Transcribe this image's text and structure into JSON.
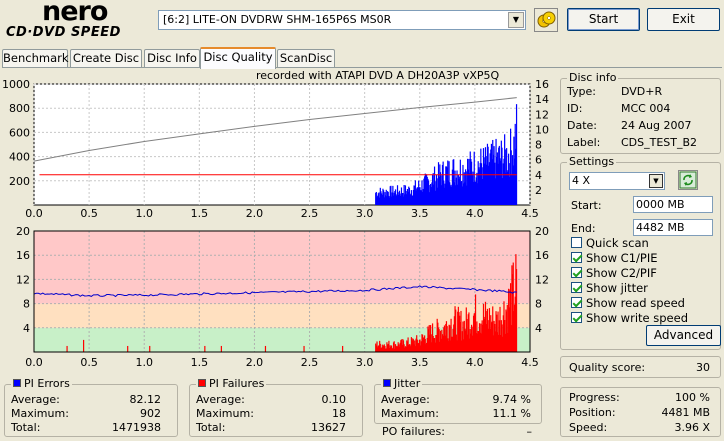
{
  "app": {
    "logo_text": "nero",
    "logo_sub": "CD·DVD SPEED"
  },
  "toolbar": {
    "drive": "[6:2]  LITE-ON DVDRW SHM-165P6S MS0R",
    "start_label": "Start",
    "exit_label": "Exit"
  },
  "tabs": [
    {
      "label": "Benchmark",
      "active": false
    },
    {
      "label": "Create Disc",
      "active": false
    },
    {
      "label": "Disc Info",
      "active": false
    },
    {
      "label": "Disc Quality",
      "active": true
    },
    {
      "label": "ScanDisc",
      "active": false
    }
  ],
  "chart_data": [
    {
      "type": "bar",
      "title": "recorded with ATAPI   DVD A   DH20A3P   vXP5Q",
      "x_ticks": [
        "0.0",
        "0.5",
        "1.0",
        "1.5",
        "2.0",
        "2.5",
        "3.0",
        "3.5",
        "4.0",
        "4.5"
      ],
      "xlim": [
        0,
        4.5
      ],
      "ylim_left": [
        0,
        1000
      ],
      "y_ticks_left": [
        "1000",
        "800",
        "600",
        "400",
        "200"
      ],
      "ylim_right": [
        0,
        16
      ],
      "y_ticks_right": [
        "16",
        "14",
        "12",
        "10",
        "8",
        "6",
        "4",
        "2"
      ],
      "series": [
        {
          "kind": "pi-errors",
          "color": "#0000ff",
          "start_x": 3.1,
          "end_x": 4.38,
          "envelope": [
            [
              3.1,
              150
            ],
            [
              3.2,
              160
            ],
            [
              3.3,
              165
            ],
            [
              3.4,
              180
            ],
            [
              3.5,
              230
            ],
            [
              3.6,
              300
            ],
            [
              3.7,
              380
            ],
            [
              3.8,
              420
            ],
            [
              3.9,
              440
            ],
            [
              4.0,
              480
            ],
            [
              4.1,
              510
            ],
            [
              4.2,
              560
            ],
            [
              4.3,
              600
            ],
            [
              4.35,
              700
            ],
            [
              4.38,
              900
            ]
          ]
        },
        {
          "kind": "read-speed",
          "color": "#808080",
          "points": [
            [
              0.0,
              5.8
            ],
            [
              0.5,
              7.2
            ],
            [
              1.0,
              8.4
            ],
            [
              1.5,
              9.4
            ],
            [
              2.0,
              10.4
            ],
            [
              2.5,
              11.3
            ],
            [
              3.0,
              12.1
            ],
            [
              3.5,
              12.9
            ],
            [
              4.0,
              13.6
            ],
            [
              4.38,
              14.2
            ]
          ]
        },
        {
          "kind": "write-speed",
          "color": "#ff0000",
          "value": 4,
          "start_x": 0.05,
          "end_x": 4.38
        }
      ]
    },
    {
      "type": "bar",
      "x_ticks": [
        "0.0",
        "0.5",
        "1.0",
        "1.5",
        "2.0",
        "2.5",
        "3.0",
        "3.5",
        "4.0",
        "4.5"
      ],
      "xlim": [
        0,
        4.5
      ],
      "ylim_left": [
        0,
        20
      ],
      "y_ticks_left": [
        "20",
        "16",
        "12",
        "8",
        "4"
      ],
      "ylim_right": [
        0,
        20
      ],
      "y_ticks_right": [
        "20",
        "16",
        "12",
        "8",
        "4"
      ],
      "bands": [
        {
          "from": 0,
          "to": 4,
          "color": "#c8f0c8"
        },
        {
          "from": 4,
          "to": 8,
          "color": "#ffe0c0"
        },
        {
          "from": 8,
          "to": 20,
          "color": "#ffc8c8"
        }
      ],
      "series": [
        {
          "kind": "pi-failures",
          "color": "#ff0000",
          "sparse": [
            [
              0.3,
              1
            ],
            [
              0.45,
              2
            ],
            [
              0.85,
              1
            ],
            [
              1.05,
              1
            ],
            [
              1.55,
              1
            ],
            [
              1.7,
              1
            ],
            [
              2.1,
              1
            ],
            [
              2.45,
              1
            ],
            [
              2.8,
              1
            ]
          ],
          "start_x": 3.1,
          "end_x": 4.38,
          "envelope": [
            [
              3.1,
              2
            ],
            [
              3.3,
              2
            ],
            [
              3.5,
              3
            ],
            [
              3.6,
              5
            ],
            [
              3.7,
              6
            ],
            [
              3.8,
              8
            ],
            [
              3.9,
              7
            ],
            [
              4.0,
              10
            ],
            [
              4.1,
              9
            ],
            [
              4.2,
              8
            ],
            [
              4.3,
              12
            ],
            [
              4.38,
              18
            ]
          ]
        },
        {
          "kind": "jitter",
          "color": "#0000cc",
          "points": [
            [
              0.0,
              9.7
            ],
            [
              0.5,
              9.3
            ],
            [
              1.0,
              9.4
            ],
            [
              1.5,
              9.6
            ],
            [
              2.0,
              9.8
            ],
            [
              2.5,
              10.0
            ],
            [
              3.0,
              10.2
            ],
            [
              3.5,
              10.8
            ],
            [
              3.8,
              10.5
            ],
            [
              4.0,
              10.3
            ],
            [
              4.2,
              10.1
            ],
            [
              4.38,
              9.8
            ]
          ]
        }
      ]
    }
  ],
  "disc_info": {
    "title": "Disc info",
    "rows": [
      {
        "label": "Type:",
        "value": "DVD+R"
      },
      {
        "label": "ID:",
        "value": "MCC 004"
      },
      {
        "label": "Date:",
        "value": "24 Aug 2007"
      },
      {
        "label": "Label:",
        "value": "CDS_TEST_B2"
      }
    ]
  },
  "settings": {
    "title": "Settings",
    "speed": "4 X",
    "start_label": "Start:",
    "start_value": "0000 MB",
    "end_label": "End:",
    "end_value": "4482 MB",
    "checks": [
      {
        "label": "Quick scan",
        "checked": false
      },
      {
        "label": "Show C1/PIE",
        "checked": true
      },
      {
        "label": "Show C2/PIF",
        "checked": true
      },
      {
        "label": "Show jitter",
        "checked": true
      },
      {
        "label": "Show read speed",
        "checked": true
      },
      {
        "label": "Show write speed",
        "checked": true
      }
    ],
    "advanced_label": "Advanced"
  },
  "quality": {
    "label": "Quality score:",
    "value": "30"
  },
  "progress": {
    "rows": [
      {
        "label": "Progress:",
        "value": "100 %"
      },
      {
        "label": "Position:",
        "value": "4481 MB"
      },
      {
        "label": "Speed:",
        "value": "3.96 X"
      }
    ]
  },
  "pi_errors": {
    "title": "PI Errors",
    "color": "#0000ff",
    "rows": [
      {
        "label": "Average:",
        "value": "82.12"
      },
      {
        "label": "Maximum:",
        "value": "902"
      },
      {
        "label": "Total:",
        "value": "1471938"
      }
    ]
  },
  "pi_failures": {
    "title": "PI Failures",
    "color": "#ff0000",
    "rows": [
      {
        "label": "Average:",
        "value": "0.10"
      },
      {
        "label": "Maximum:",
        "value": "18"
      },
      {
        "label": "Total:",
        "value": "13627"
      }
    ]
  },
  "jitter": {
    "title": "Jitter",
    "color": "#0000ff",
    "rows": [
      {
        "label": "Average:",
        "value": "9.74 %"
      },
      {
        "label": "Maximum:",
        "value": "11.1 %"
      }
    ],
    "po_label": "PO failures:",
    "po_value": "–"
  }
}
